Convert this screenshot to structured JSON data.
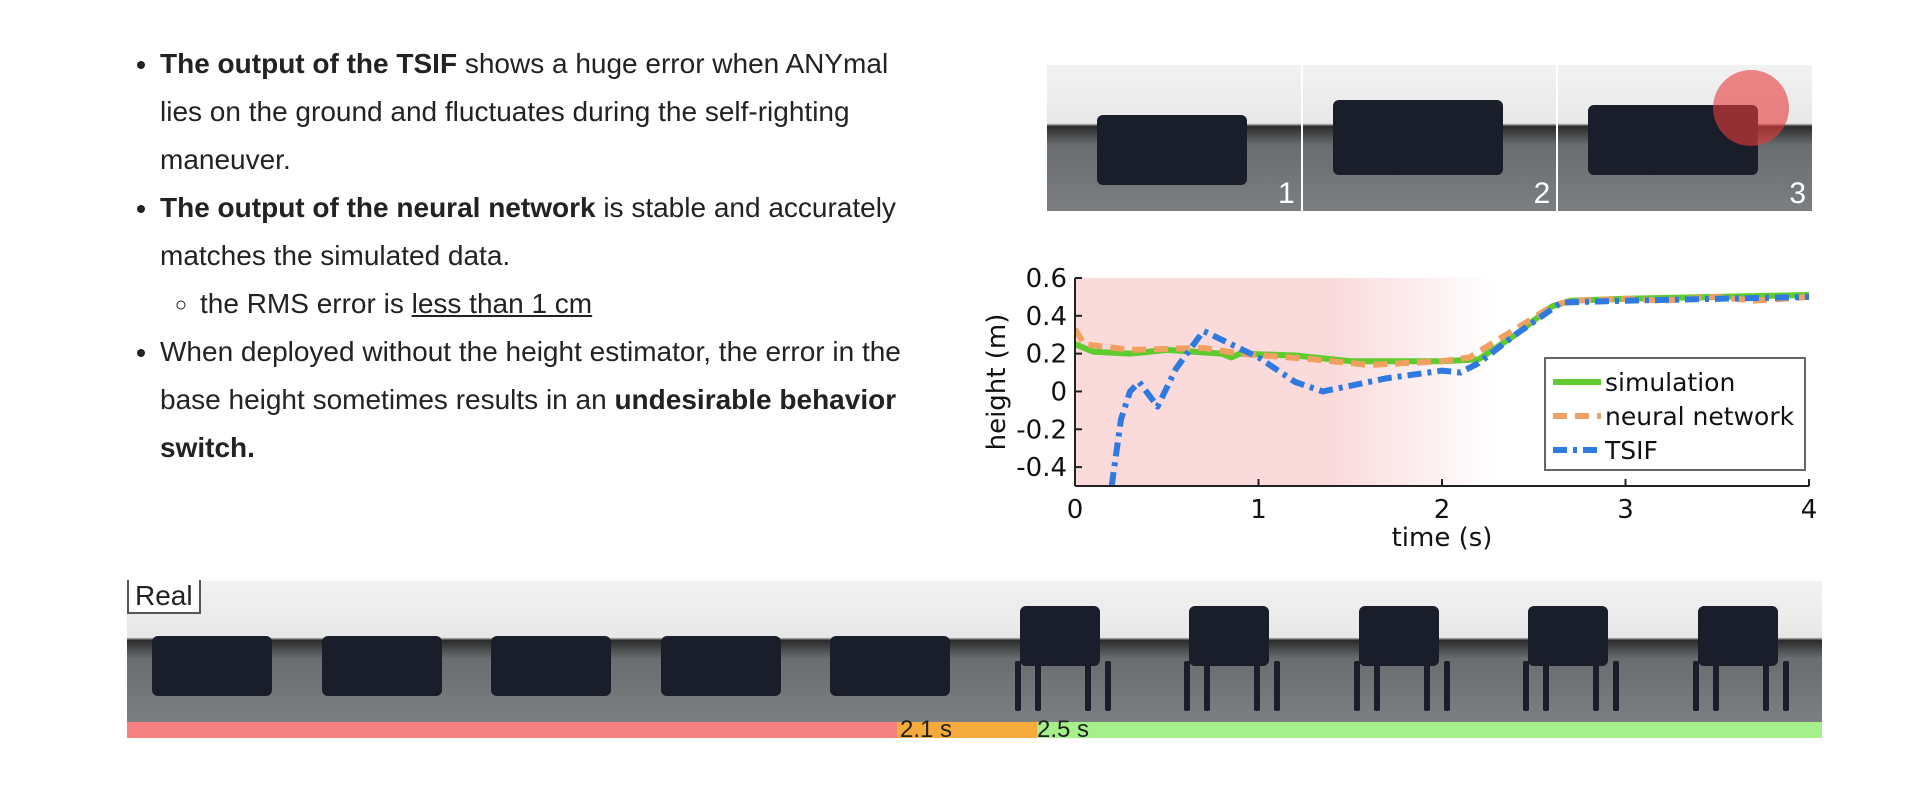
{
  "bullets": [
    {
      "bold": "The output of the TSIF",
      "text": " shows a huge error when ANYmal lies on the ground and fluctuates during the self-righting maneuver."
    },
    {
      "bold": "The output of the neural network",
      "text": " is stable and accurately matches the simulated data.",
      "sub": {
        "text": "the RMS error is ",
        "underline": "less than 1 cm"
      }
    },
    {
      "text": "When deployed without the height estimator, the error in the base height sometimes results in an ",
      "bold_end": "undesirable behavior switch."
    }
  ],
  "top_photos": [
    "1",
    "2",
    "3"
  ],
  "bottom_strip": {
    "label": "Real",
    "frames": 10,
    "marks": [
      "2.1 s",
      "2.5 s"
    ],
    "phase_colors": {
      "before": "#f58080",
      "transition": "#f5aa3c",
      "after": "#a6f08c"
    }
  },
  "chart_data": {
    "type": "line",
    "xlabel": "time (s)",
    "ylabel": "height (m)",
    "xlim": [
      0,
      4
    ],
    "ylim": [
      -0.5,
      0.6
    ],
    "xticks": [
      "0",
      "1",
      "2",
      "3",
      "4"
    ],
    "yticks": [
      "0.6",
      "0.4",
      "0.2",
      "0",
      "-0.2",
      "-0.4"
    ],
    "legend_position": "right",
    "grid": false,
    "shaded_region": {
      "x": [
        0,
        2.3
      ],
      "color": "#fadadb"
    },
    "series": [
      {
        "name": "simulation",
        "color": "#5ecb2e",
        "style": "solid",
        "x": [
          0,
          0.1,
          0.3,
          0.5,
          0.8,
          0.85,
          0.9,
          1.2,
          1.5,
          2.0,
          2.2,
          2.4,
          2.6,
          2.7,
          3.0,
          3.5,
          4.0
        ],
        "y": [
          0.25,
          0.21,
          0.2,
          0.22,
          0.2,
          0.18,
          0.2,
          0.19,
          0.16,
          0.16,
          0.17,
          0.3,
          0.45,
          0.48,
          0.49,
          0.5,
          0.51
        ]
      },
      {
        "name": "neural network",
        "color": "#f0a060",
        "style": "dashed",
        "x": [
          0,
          0.05,
          0.3,
          0.7,
          0.9,
          1.3,
          1.6,
          2.0,
          2.15,
          2.3,
          2.6,
          2.7,
          3.0,
          3.2,
          3.5,
          3.7,
          4.0
        ],
        "y": [
          0.33,
          0.25,
          0.22,
          0.23,
          0.2,
          0.17,
          0.14,
          0.16,
          0.18,
          0.27,
          0.45,
          0.48,
          0.49,
          0.48,
          0.5,
          0.48,
          0.5
        ]
      },
      {
        "name": "TSIF",
        "color": "#2f7ae0",
        "style": "dashdot",
        "x": [
          0.2,
          0.25,
          0.3,
          0.35,
          0.45,
          0.55,
          0.7,
          0.85,
          1.0,
          1.2,
          1.35,
          1.5,
          1.7,
          2.0,
          2.1,
          2.2,
          2.4,
          2.65,
          3.0,
          4.0
        ],
        "y": [
          -0.5,
          -0.15,
          0,
          0.05,
          -0.08,
          0.12,
          0.32,
          0.25,
          0.18,
          0.05,
          0,
          0.03,
          0.07,
          0.11,
          0.1,
          0.15,
          0.3,
          0.47,
          0.48,
          0.5
        ]
      }
    ]
  }
}
